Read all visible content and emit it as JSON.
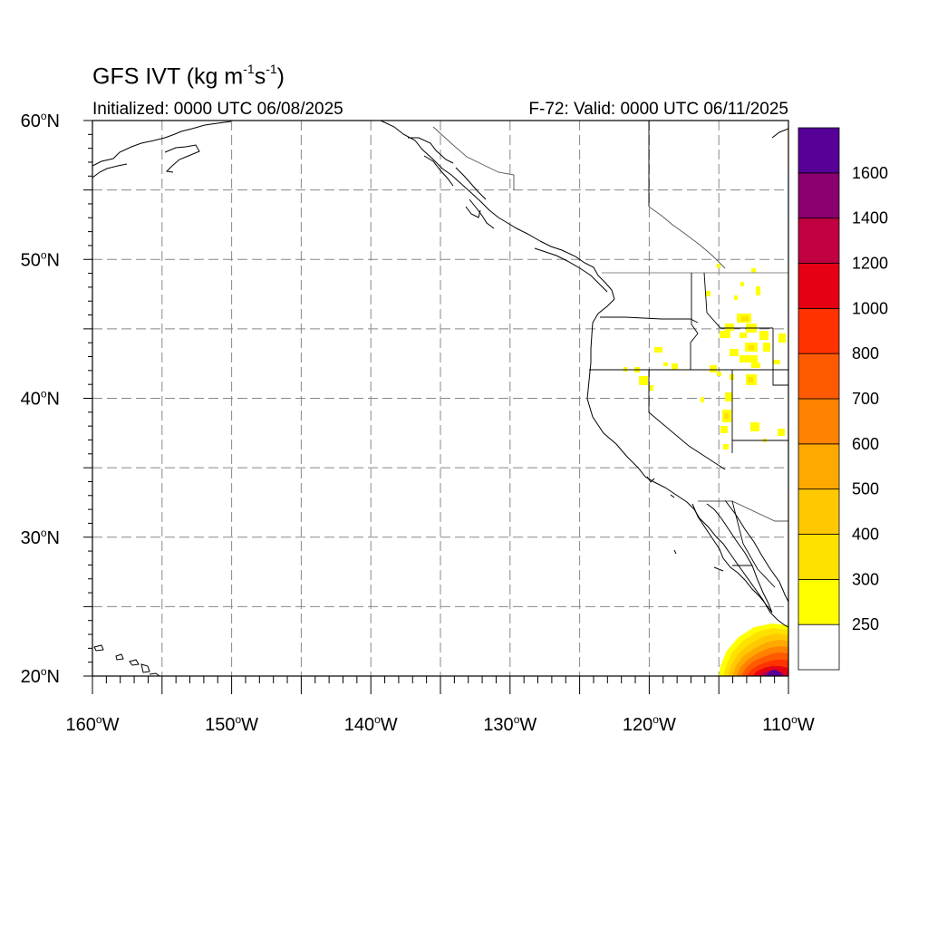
{
  "title": {
    "prefix": "GFS IVT (kg m",
    "exp1": "-1",
    "mid": "s",
    "exp2": "-1",
    "suffix": ")"
  },
  "subtitle_left": "Initialized: 0000 UTC 06/08/2025",
  "subtitle_right": "F-72: Valid: 0000 UTC 06/11/2025",
  "lat_labels": [
    "60",
    "50",
    "40",
    "30",
    "20"
  ],
  "lat_suffix": "N",
  "lon_labels": [
    "160",
    "150",
    "140",
    "130",
    "120",
    "110"
  ],
  "lon_suffix": "W",
  "colorbar": {
    "labels": [
      "250",
      "300",
      "400",
      "500",
      "600",
      "700",
      "800",
      "1000",
      "1200",
      "1400",
      "1600"
    ],
    "colors": [
      "#ffffff",
      "#ffff00",
      "#ffe100",
      "#ffc800",
      "#ffa900",
      "#ff8200",
      "#ff5a00",
      "#ff3200",
      "#e60014",
      "#c00040",
      "#8a0070",
      "#560098"
    ]
  }
}
